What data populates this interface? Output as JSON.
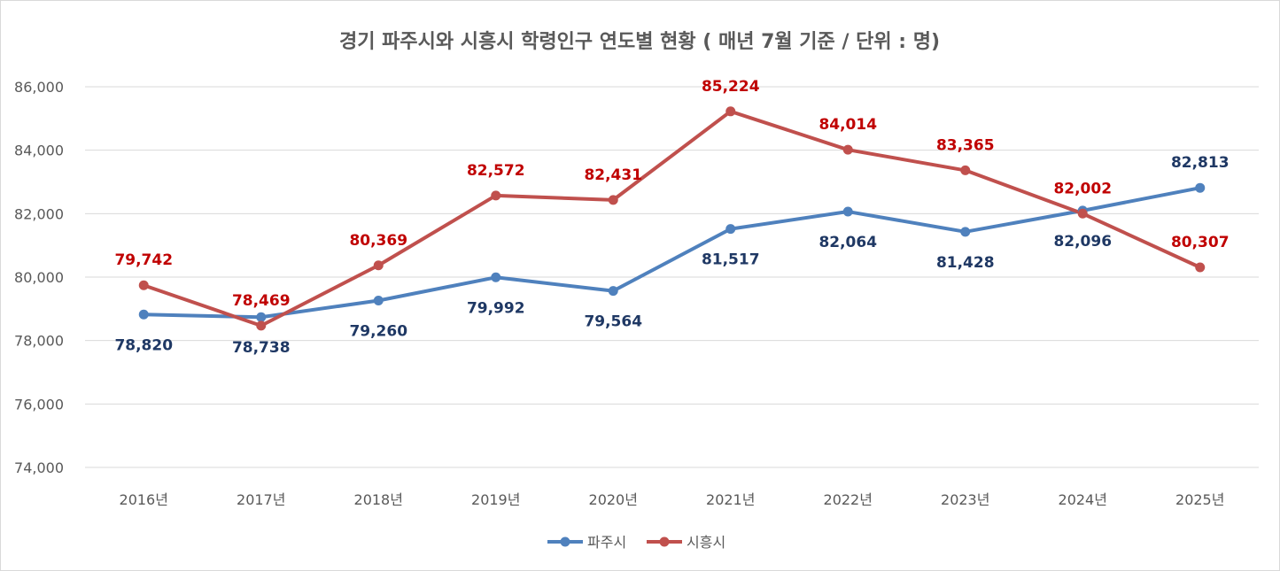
{
  "chart_data": {
    "type": "line",
    "title": "경기 파주시와 시흥시 학령인구 연도별 현황 ( 매년 7월 기준 / 단위 : 명)",
    "categories": [
      "2016년",
      "2017년",
      "2018년",
      "2019년",
      "2020년",
      "2021년",
      "2022년",
      "2023년",
      "2024년",
      "2025년"
    ],
    "ylim": [
      74000,
      86000
    ],
    "yticks": [
      74000,
      76000,
      78000,
      80000,
      82000,
      84000,
      86000
    ],
    "ytick_labels": [
      "74,000",
      "76,000",
      "78,000",
      "80,000",
      "82,000",
      "84,000",
      "86,000"
    ],
    "grid": true,
    "legend_position": "bottom",
    "series": [
      {
        "name": "파주시",
        "color": "#4f81bd",
        "label_color": "#1f3864",
        "values": [
          78820,
          78738,
          79260,
          79992,
          79564,
          81517,
          82064,
          81428,
          82096,
          82813
        ],
        "labels": [
          "78,820",
          "78,738",
          "79,260",
          "79,992",
          "79,564",
          "81,517",
          "82,064",
          "81,428",
          "82,096",
          "82,813"
        ],
        "label_side": [
          "below",
          "below",
          "below",
          "below",
          "below",
          "below",
          "below",
          "below",
          "below",
          "above"
        ]
      },
      {
        "name": "시흥시",
        "color": "#c0504d",
        "label_color": "#c00000",
        "values": [
          79742,
          78469,
          80369,
          82572,
          82431,
          85224,
          84014,
          83365,
          82002,
          80307
        ],
        "labels": [
          "79,742",
          "78,469",
          "80,369",
          "82,572",
          "82,431",
          "85,224",
          "84,014",
          "83,365",
          "82,002",
          "80,307"
        ],
        "label_side": [
          "above",
          "above",
          "above",
          "above",
          "above",
          "above",
          "above",
          "above",
          "above",
          "above"
        ]
      }
    ]
  }
}
